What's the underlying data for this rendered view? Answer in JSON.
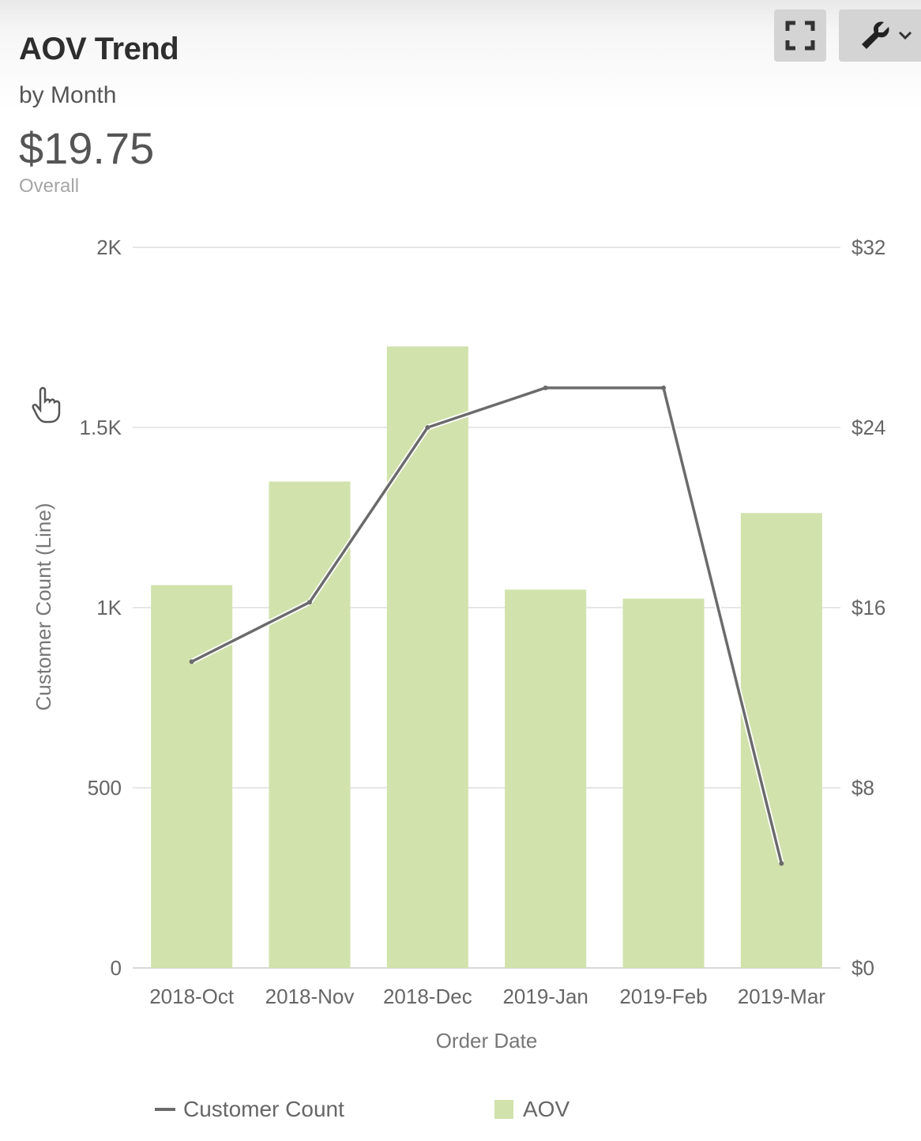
{
  "header": {
    "title": "AOV Trend",
    "subtitle": "by Month",
    "kpi_value": "$19.75",
    "kpi_label": "Overall"
  },
  "toolbar": {
    "expand_icon": "expand-icon",
    "settings_icon": "wrench-icon",
    "menu_icon": "chevron-down-icon"
  },
  "colors": {
    "bar": "#d1e2ac",
    "line": "#6b6b6b",
    "grid": "#e6e6e6"
  },
  "chart_data": {
    "type": "bar",
    "categories": [
      "2018-Oct",
      "2018-Nov",
      "2018-Dec",
      "2019-Jan",
      "2019-Feb",
      "2019-Mar"
    ],
    "xlabel": "Order Date",
    "ylabel": "Customer Count (Line)",
    "ylim": [
      0,
      2000
    ],
    "yticks": [
      "0",
      "500",
      "1K",
      "1.5K",
      "2K"
    ],
    "y2lim": [
      0,
      32
    ],
    "y2ticks": [
      "$0",
      "$8",
      "$16",
      "$24",
      "$32"
    ],
    "grid": true,
    "legend_position": "bottom",
    "series": [
      {
        "name": "AOV",
        "type": "bar",
        "axis": "right",
        "values": [
          17.0,
          21.6,
          27.6,
          16.8,
          16.4,
          20.2
        ]
      },
      {
        "name": "Customer Count",
        "type": "line",
        "axis": "left",
        "values": [
          850,
          1015,
          1500,
          1610,
          1610,
          290
        ]
      }
    ]
  },
  "legend": {
    "line_label": "Customer Count",
    "bar_label": "AOV"
  }
}
